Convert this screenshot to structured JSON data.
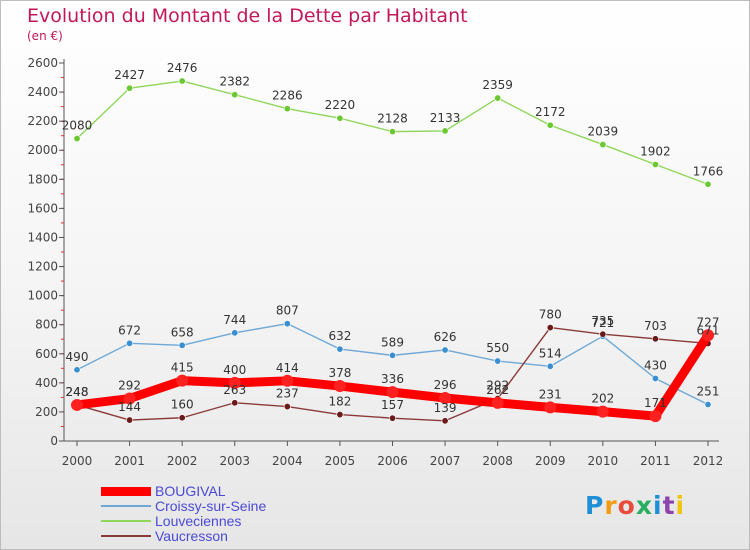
{
  "header": {
    "title": "Evolution du Montant de la Dette par Habitant",
    "subtitle": "(en €)"
  },
  "logo": {
    "text": "Proxiti",
    "colors": [
      "#1f8fd6",
      "#f39c12",
      "#e74c3c",
      "#27ae60",
      "#1f8fd6",
      "#8e44ad",
      "#f1c40f"
    ]
  },
  "chart_data": {
    "type": "line",
    "title": "Evolution du Montant de la Dette par Habitant",
    "subtitle": "(en €)",
    "x": [
      "2000",
      "2001",
      "2002",
      "2003",
      "2004",
      "2005",
      "2006",
      "2007",
      "2008",
      "2009",
      "2010",
      "2011",
      "2012"
    ],
    "ylim": [
      0,
      2600
    ],
    "yticks": [
      0,
      200,
      400,
      600,
      800,
      1000,
      1200,
      1400,
      1600,
      1800,
      2000,
      2200,
      2400,
      2600
    ],
    "grid": false,
    "legend_position": "bottom-left",
    "series": [
      {
        "name": "BOUGIVAL",
        "color": "#ff0000",
        "marker_color": "#ff2020",
        "emphasis": "thick",
        "values": [
          248,
          292,
          415,
          400,
          414,
          378,
          336,
          296,
          262,
          231,
          202,
          171,
          727
        ],
        "labels": [
          "248",
          "292",
          "415",
          "400",
          "414",
          "378",
          "336",
          "296",
          "262",
          "231",
          "202",
          "171",
          "727"
        ]
      },
      {
        "name": "Croissy-sur-Seine",
        "color": "#6fa8d6",
        "marker_color": "#3a8fd0",
        "values": [
          490,
          672,
          658,
          744,
          807,
          632,
          589,
          626,
          550,
          514,
          721,
          430,
          251
        ],
        "labels": [
          "490",
          "672",
          "658",
          "744",
          "807",
          "632",
          "589",
          "626",
          "550",
          "514",
          "721",
          "430",
          "251"
        ]
      },
      {
        "name": "Louveciennes",
        "color": "#8fd65a",
        "marker_color": "#6cc832",
        "values": [
          2080,
          2427,
          2476,
          2382,
          2286,
          2220,
          2128,
          2133,
          2359,
          2172,
          2039,
          1902,
          1766
        ],
        "labels": [
          "2080",
          "2427",
          "2476",
          "2382",
          "2286",
          "2220",
          "2128",
          "2133",
          "2359",
          "2172",
          "2039",
          "1902",
          "1766"
        ]
      },
      {
        "name": "Vaucresson",
        "color": "#8b3a3a",
        "marker_color": "#6b1a1a",
        "values": [
          248,
          144,
          160,
          263,
          237,
          182,
          157,
          139,
          292,
          780,
          735,
          703,
          671
        ],
        "labels": [
          "248",
          "144",
          "160",
          "263",
          "237",
          "182",
          "157",
          "139",
          "292",
          "780",
          "735",
          "703",
          "671"
        ]
      }
    ]
  }
}
